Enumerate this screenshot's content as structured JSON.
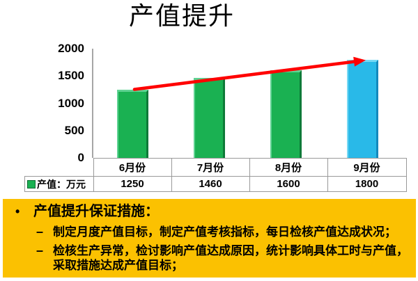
{
  "title": "产值提升",
  "chart_data": {
    "type": "bar",
    "title": "产值提升",
    "categories": [
      "6月份",
      "7月份",
      "8月份",
      "9月份"
    ],
    "series": [
      {
        "name": "产值：万元",
        "values": [
          1250,
          1460,
          1600,
          1800
        ]
      }
    ],
    "ylabel": "",
    "xlabel": "",
    "ylim": [
      0,
      2000
    ],
    "yticks": [
      "2000",
      "1500",
      "1000",
      "500",
      "0"
    ],
    "grid": false,
    "legend_position": "data-table-left",
    "bar_colors": [
      "#1AB152",
      "#1AB152",
      "#1AB152",
      "#29B9E8"
    ],
    "bar_bevel_light": [
      "#5FD292",
      "#5FD292",
      "#5FD292",
      "#78D9F4"
    ],
    "bar_bevel_dark": [
      "#0E7A38",
      "#0E7A38",
      "#0E7A38",
      "#1489BC"
    ],
    "trend_arrow_color": "#FF0000",
    "annotations": [
      "red rising trend arrow from 6月份 bar top to 9月份 bar top"
    ],
    "data_table": {
      "legend_label": "产值：万元",
      "legend_key_color": "#1AB152",
      "values": [
        "1250",
        "1460",
        "1600",
        "1800"
      ]
    }
  },
  "notes": {
    "background_color": "#FBC101",
    "bullet_char": "•",
    "dash_char": "–",
    "heading": "产值提升保证措施：",
    "items": [
      "制定月度产值目标，制定产值考核指标，每日检核产值达成状况；",
      "检核生产异常，检讨影响产值达成原因，统计影响具体工时与产值，采取措施达成产值目标；"
    ]
  }
}
